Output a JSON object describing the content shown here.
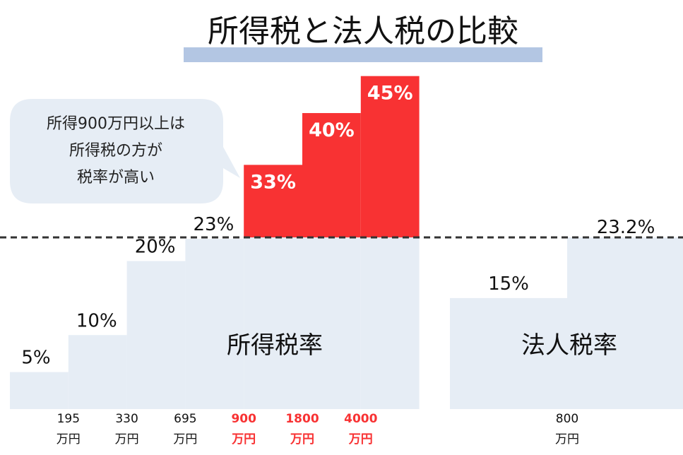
{
  "title": "所得税と法人税の比較",
  "callout": {
    "lines": [
      "所得900万円以上は",
      "所得税の方が",
      "税率が高い"
    ]
  },
  "colors": {
    "base_fill": "#e6edf5",
    "highlight_fill": "#f83233",
    "highlight_label": "#ffffff",
    "highlight_axis_label": "#f83233",
    "title_underline": "#b3c6e3",
    "bubble_fill": "#e6edf5",
    "dashed_line": "#333333"
  },
  "chart_data": {
    "type": "bar",
    "reference_line": {
      "value": 23.2,
      "label": "23.2%",
      "style": "dashed"
    },
    "series": [
      {
        "name": "所得税率",
        "steps": [
          {
            "rate": 5,
            "label": "5%",
            "highlight": false,
            "threshold_value": "195",
            "threshold_unit": "万円"
          },
          {
            "rate": 10,
            "label": "10%",
            "highlight": false,
            "threshold_value": "330",
            "threshold_unit": "万円"
          },
          {
            "rate": 20,
            "label": "20%",
            "highlight": false,
            "threshold_value": "695",
            "threshold_unit": "万円"
          },
          {
            "rate": 23,
            "label": "23%",
            "highlight": false,
            "threshold_value": "900",
            "threshold_unit": "万円"
          },
          {
            "rate": 33,
            "label": "33%",
            "highlight": true,
            "threshold_value": "1800",
            "threshold_unit": "万円"
          },
          {
            "rate": 40,
            "label": "40%",
            "highlight": true,
            "threshold_value": "4000",
            "threshold_unit": "万円"
          },
          {
            "rate": 45,
            "label": "45%",
            "highlight": true,
            "threshold_value": "",
            "threshold_unit": ""
          }
        ]
      },
      {
        "name": "法人税率",
        "steps": [
          {
            "rate": 15,
            "label": "15%",
            "highlight": false,
            "threshold_value": "800",
            "threshold_unit": "万円"
          },
          {
            "rate": 23.2,
            "label": "23.2%",
            "highlight": false,
            "threshold_value": "",
            "threshold_unit": ""
          }
        ]
      }
    ]
  }
}
